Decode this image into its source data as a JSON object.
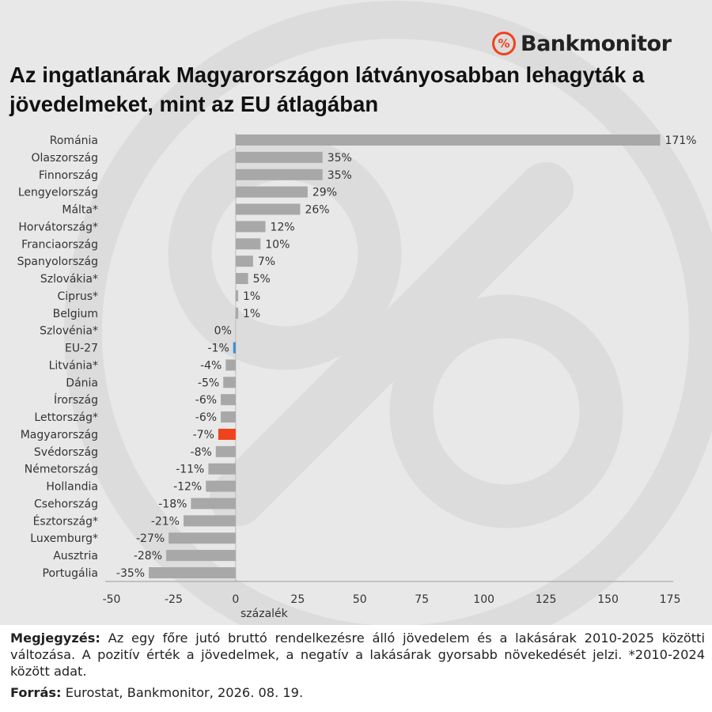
{
  "brand": {
    "logo_symbol": "%",
    "logo_text": "Bankmonitor",
    "accent": "#f0421c"
  },
  "title": "Az ingatlanárak Magyarországon látványosabban lehagyták a jövedelmeket, mint az EU átlagában",
  "note": {
    "label": "Megjegyzés:",
    "text": "Az egy főre jutó bruttó rendelkezésre álló jövedelem és a lakásárak 2010-2025 közötti változása. A pozitív érték a jövedelmek, a negatív a lakásárak gyorsabb növekedését jelzi. *2010-2024 között adat."
  },
  "source": {
    "label": "Forrás:",
    "text": "Eurostat, Bankmonitor, 2026. 08. 19."
  },
  "chart_data": {
    "type": "bar",
    "orientation": "horizontal",
    "xlabel": "százalék",
    "xlim": [
      -50,
      175
    ],
    "xticks": [
      -50,
      -25,
      0,
      25,
      50,
      75,
      100,
      125,
      150,
      175
    ],
    "default_color": "#a8a8a8",
    "categories": [
      "Románia",
      "Olaszország",
      "Finnország",
      "Lengyelország",
      "Málta*",
      "Horvátország*",
      "Franciaország",
      "Spanyolország",
      "Szlovákia*",
      "Ciprus*",
      "Belgium",
      "Szlovénia*",
      "EU-27",
      "Litvánia*",
      "Dánia",
      "Írország",
      "Lettország*",
      "Magyarország",
      "Svédország",
      "Németország",
      "Hollandia",
      "Csehország",
      "Észtország*",
      "Luxemburg*",
      "Ausztria",
      "Portugália"
    ],
    "values": [
      171,
      35,
      35,
      29,
      26,
      12,
      10,
      7,
      5,
      1,
      1,
      0,
      -1,
      -4,
      -5,
      -6,
      -6,
      -7,
      -8,
      -11,
      -12,
      -18,
      -21,
      -27,
      -28,
      -35
    ],
    "value_labels": [
      "171%",
      "35%",
      "35%",
      "29%",
      "26%",
      "12%",
      "10%",
      "7%",
      "5%",
      "1%",
      "1%",
      "0%",
      "-1%",
      "-4%",
      "-5%",
      "-6%",
      "-6%",
      "-7%",
      "-8%",
      "-11%",
      "-12%",
      "-18%",
      "-21%",
      "-27%",
      "-28%",
      "-35%"
    ],
    "highlights": [
      {
        "category": "EU-27",
        "color": "#3a8fd0"
      },
      {
        "category": "Magyarország",
        "color": "#f0421c"
      }
    ]
  }
}
